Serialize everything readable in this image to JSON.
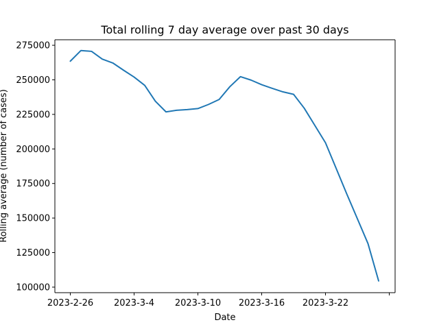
{
  "chart_data": {
    "type": "line",
    "title": "Total rolling 7 day average over past 30 days",
    "xlabel": "Date",
    "ylabel": "Rolling average (number of cases)",
    "x_tick_labels": [
      "2023-2-26",
      "2023-3-4",
      "2023-3-10",
      "2023-3-16",
      "2023-3-22",
      ""
    ],
    "y_tick_labels": [
      "100000",
      "125000",
      "150000",
      "175000",
      "200000",
      "225000",
      "250000",
      "275000"
    ],
    "y_ticks": [
      100000,
      125000,
      150000,
      175000,
      200000,
      225000,
      250000,
      275000
    ],
    "ylim": [
      96000,
      279000
    ],
    "xlim": [
      "2023-2-26",
      "2023-3-27"
    ],
    "grid": false,
    "line_color": "#1f77b4",
    "x": [
      "2023-2-26",
      "2023-2-27",
      "2023-2-28",
      "2023-3-1",
      "2023-3-2",
      "2023-3-3",
      "2023-3-4",
      "2023-3-5",
      "2023-3-6",
      "2023-3-7",
      "2023-3-8",
      "2023-3-9",
      "2023-3-10",
      "2023-3-11",
      "2023-3-12",
      "2023-3-13",
      "2023-3-14",
      "2023-3-15",
      "2023-3-16",
      "2023-3-17",
      "2023-3-18",
      "2023-3-19",
      "2023-3-20",
      "2023-3-21",
      "2023-3-22",
      "2023-3-23",
      "2023-3-24",
      "2023-3-25",
      "2023-3-26",
      "2023-3-27"
    ],
    "series": [
      {
        "values": [
          263500,
          271200,
          270600,
          265000,
          262200,
          257000,
          252000,
          246000,
          234500,
          226800,
          228000,
          228500,
          229200,
          232200,
          235800,
          245000,
          252300,
          249800,
          246500,
          243800,
          241300,
          239500,
          229500,
          217000,
          204500,
          186000,
          167500,
          149500,
          131500,
          104500
        ]
      }
    ]
  }
}
